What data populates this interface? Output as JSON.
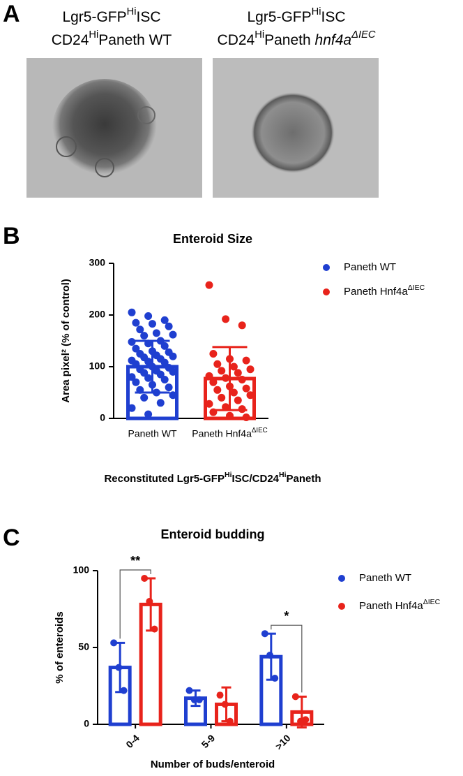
{
  "panel_labels": [
    "A",
    "B",
    "C"
  ],
  "panel_a": {
    "captions": [
      [
        [
          {
            "text": "Lgr5-GFP"
          },
          {
            "text": "Hi",
            "sup": true
          },
          {
            "text": "ISC"
          }
        ],
        [
          {
            "text": "CD24"
          },
          {
            "text": "Hi",
            "sup": true
          },
          {
            "text": "Paneth WT"
          }
        ]
      ],
      [
        [
          {
            "text": "Lgr5-GFP"
          },
          {
            "text": "Hi",
            "sup": true
          },
          {
            "text": "ISC"
          }
        ],
        [
          {
            "text": "CD24"
          },
          {
            "text": "Hi",
            "sup": true
          },
          {
            "text": "Paneth "
          },
          {
            "text": "hnf4a",
            "italic": true
          },
          {
            "text": "ΔIEC",
            "sup": true,
            "italic": true
          }
        ]
      ]
    ]
  },
  "chart_data": [
    {
      "type": "bar",
      "title": "Enteroid Size",
      "y_label": "Area pixel² (% of control)",
      "x_label": [
        {
          "text": "Reconstituted Lgr5-GFP"
        },
        {
          "text": "Hi",
          "sup": true
        },
        {
          "text": "ISC/CD24"
        },
        {
          "text": "Hi",
          "sup": true
        },
        {
          "text": "Paneth"
        }
      ],
      "categories": [
        "Paneth WT",
        "Paneth Hnf4a"
      ],
      "category_sups": [
        null,
        "ΔIEC"
      ],
      "values": [
        100,
        77
      ],
      "errors": [
        50,
        61
      ],
      "colors": [
        "#1f3fd0",
        "#e8231b"
      ],
      "points": [
        [
          205,
          198,
          190,
          185,
          183,
          178,
          172,
          165,
          162,
          160,
          150,
          148,
          145,
          140,
          135,
          130,
          128,
          125,
          122,
          120,
          118,
          115,
          112,
          110,
          108,
          105,
          100,
          98,
          95,
          92,
          90,
          88,
          85,
          80,
          78,
          75,
          70,
          65,
          60,
          55,
          50,
          45,
          40,
          30,
          20,
          8
        ],
        [
          258,
          192,
          180,
          125,
          115,
          112,
          105,
          100,
          95,
          92,
          88,
          82,
          78,
          75,
          70,
          62,
          58,
          55,
          50,
          45,
          40,
          35,
          28,
          22,
          18,
          12,
          5,
          2
        ]
      ],
      "legend": [
        {
          "name": "Paneth WT"
        },
        {
          "name": "Paneth Hnf4a",
          "sup": "ΔIEC"
        }
      ],
      "ylim": [
        0,
        300
      ],
      "yticks": [
        0,
        100,
        200,
        300
      ]
    },
    {
      "type": "bar",
      "title": "Enteroid budding",
      "y_label": "% of enteroids",
      "x_label": "Number of buds/enteroid",
      "categories": [
        "0-4",
        "5-9",
        ">10"
      ],
      "series": [
        {
          "name": "Paneth WT",
          "color": "#1f3fd0",
          "values": [
            37,
            17,
            44
          ],
          "errors": [
            16,
            5,
            15
          ],
          "points": [
            [
              53,
              37,
              22
            ],
            [
              22,
              16,
              16
            ],
            [
              59,
              45,
              30
            ]
          ]
        },
        {
          "name": "Paneth Hnf4a",
          "name_sup": "ΔIEC",
          "color": "#e8231b",
          "values": [
            78,
            13,
            8
          ],
          "errors": [
            17,
            11,
            10
          ],
          "points": [
            [
              95,
              80,
              62
            ],
            [
              19,
              13,
              2
            ],
            [
              18,
              2,
              3
            ]
          ]
        }
      ],
      "annotations": [
        {
          "text": "**",
          "category": 0
        },
        {
          "text": "*",
          "category": 2
        }
      ],
      "ylim": [
        0,
        100
      ],
      "yticks": [
        0,
        50,
        100
      ]
    }
  ]
}
